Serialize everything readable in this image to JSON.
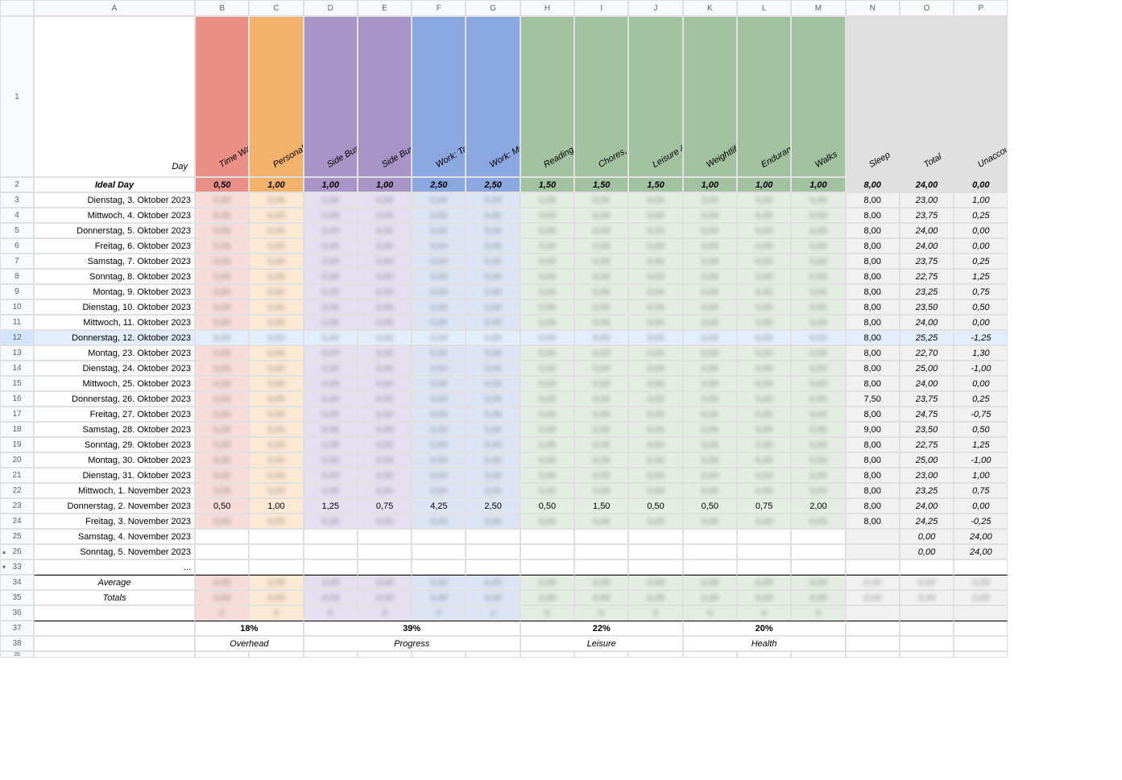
{
  "columns": [
    "A",
    "B",
    "C",
    "D",
    "E",
    "F",
    "G",
    "H",
    "I",
    "J",
    "K",
    "L",
    "M",
    "N",
    "O",
    "P"
  ],
  "headerLabels": {
    "A": "Day",
    "B": "Time Waste, Social Media & Procrastination",
    "C": "Personal Order",
    "D": "Side Business: Operations",
    "E": "Side Business: BizDev",
    "F": "Work: Tasks",
    "G": "Work: Meetings",
    "H": "Reading, Learning & Creating",
    "I": "Chores, Basics & Life",
    "J": "Leisure & Flow",
    "K": "Weightlifting",
    "L": "Endurance Training",
    "M": "Walks",
    "N": "Sleep",
    "O": "Total",
    "P": "Unaccounted"
  },
  "headerColors": {
    "B": "#e98f86",
    "C": "#f3b26b",
    "D": "#a994c8",
    "E": "#a994c8",
    "F": "#8aa7e0",
    "G": "#8aa7e0",
    "H": "#a2c1a1",
    "I": "#a2c1a1",
    "J": "#a2c1a1",
    "K": "#a2c1a1",
    "L": "#a2c1a1",
    "M": "#a2c1a1",
    "N": "#e0e0e0",
    "O": "#e0e0e0",
    "P": "#e0e0e0"
  },
  "bodyTints": {
    "B": "#f7dcd9",
    "C": "#fbe9d4",
    "D": "#e6dff0",
    "E": "#e6dff0",
    "F": "#dde5f5",
    "G": "#dde5f5",
    "H": "#e3ede2",
    "I": "#e3ede2",
    "J": "#e3ede2",
    "K": "#e3ede2",
    "L": "#e3ede2",
    "M": "#e3ede2",
    "N": "#f1f1f1",
    "O": "#f1f1f1",
    "P": "#f1f1f1"
  },
  "ideal": {
    "label": "Ideal Day",
    "B": "0,50",
    "C": "1,00",
    "D": "1,00",
    "E": "1,00",
    "F": "2,50",
    "G": "2,50",
    "H": "1,50",
    "I": "1,50",
    "J": "1,50",
    "K": "1,00",
    "L": "1,00",
    "M": "1,00",
    "N": "8,00",
    "O": "24,00",
    "P": "0,00"
  },
  "rows": [
    {
      "n": 3,
      "A": "Dienstag, 3. Oktober 2023",
      "N": "8,00",
      "O": "23,00",
      "P": "1,00"
    },
    {
      "n": 4,
      "A": "Mittwoch, 4. Oktober 2023",
      "N": "8,00",
      "O": "23,75",
      "P": "0,25"
    },
    {
      "n": 5,
      "A": "Donnerstag, 5. Oktober 2023",
      "N": "8,00",
      "O": "24,00",
      "P": "0,00"
    },
    {
      "n": 6,
      "A": "Freitag, 6. Oktober 2023",
      "N": "8,00",
      "O": "24,00",
      "P": "0,00"
    },
    {
      "n": 7,
      "A": "Samstag, 7. Oktober 2023",
      "N": "8,00",
      "O": "23,75",
      "P": "0,25"
    },
    {
      "n": 8,
      "A": "Sonntag, 8. Oktober 2023",
      "N": "8,00",
      "O": "22,75",
      "P": "1,25"
    },
    {
      "n": 9,
      "A": "Montag, 9. Oktober 2023",
      "N": "8,00",
      "O": "23,25",
      "P": "0,75"
    },
    {
      "n": 10,
      "A": "Dienstag, 10. Oktober 2023",
      "N": "8,00",
      "O": "23,50",
      "P": "0,50"
    },
    {
      "n": 11,
      "A": "Mittwoch, 11. Oktober 2023",
      "N": "8,00",
      "O": "24,00",
      "P": "0,00"
    },
    {
      "n": 12,
      "A": "Donnerstag, 12. Oktober 2023",
      "sel": true,
      "N": "8,00",
      "O": "25,25",
      "P": "-1,25"
    },
    {
      "n": 13,
      "A": "Montag, 23. Oktober 2023",
      "N": "8,00",
      "O": "22,70",
      "P": "1,30"
    },
    {
      "n": 14,
      "A": "Dienstag, 24. Oktober 2023",
      "N": "8,00",
      "O": "25,00",
      "P": "-1,00"
    },
    {
      "n": 15,
      "A": "Mittwoch, 25. Oktober 2023",
      "N": "8,00",
      "O": "24,00",
      "P": "0,00"
    },
    {
      "n": 16,
      "A": "Donnerstag, 26. Oktober 2023",
      "N": "7,50",
      "O": "23,75",
      "P": "0,25"
    },
    {
      "n": 17,
      "A": "Freitag, 27. Oktober 2023",
      "N": "8,00",
      "O": "24,75",
      "P": "-0,75"
    },
    {
      "n": 18,
      "A": "Samstag, 28. Oktober 2023",
      "N": "9,00",
      "O": "23,50",
      "P": "0,50"
    },
    {
      "n": 19,
      "A": "Sonntag, 29. Oktober 2023",
      "N": "8,00",
      "O": "22,75",
      "P": "1,25"
    },
    {
      "n": 20,
      "A": "Montag, 30. Oktober 2023",
      "N": "8,00",
      "O": "25,00",
      "P": "-1,00"
    },
    {
      "n": 21,
      "A": "Dienstag, 31. Oktober 2023",
      "N": "8,00",
      "O": "23,00",
      "P": "1,00"
    },
    {
      "n": 22,
      "A": "Mittwoch, 1. November 2023",
      "N": "8,00",
      "O": "23,25",
      "P": "0,75"
    },
    {
      "n": 23,
      "A": "Donnerstag, 2. November 2023",
      "clear": true,
      "B": "0,50",
      "C": "1,00",
      "D": "1,25",
      "E": "0,75",
      "F": "4,25",
      "G": "2,50",
      "H": "0,50",
      "I": "1,50",
      "J": "0,50",
      "K": "0,50",
      "L": "0,75",
      "M": "2,00",
      "N": "8,00",
      "O": "24,00",
      "P": "0,00"
    },
    {
      "n": 24,
      "A": "Freitag, 3. November 2023",
      "N": "8,00",
      "O": "24,25",
      "P": "-0,25"
    },
    {
      "n": 25,
      "A": "Samstag, 4. November 2023",
      "O": "0,00",
      "P": "24,00",
      "empty": true
    },
    {
      "n": 26,
      "A": "Sonntag, 5. November 2023",
      "tri": "up",
      "O": "0,00",
      "P": "24,00",
      "empty": true
    }
  ],
  "row33": {
    "n": 33,
    "A": "...",
    "tri": "dn"
  },
  "avg": {
    "n": 34,
    "A": "Average"
  },
  "totals": {
    "n": 35,
    "A": "Totals"
  },
  "pct": {
    "n": 37,
    "BC": "18%",
    "DEFG": "39%",
    "HIJ": "22%",
    "KLM": "20%"
  },
  "groups": {
    "n": 38,
    "BC": "Overhead",
    "DEFG": "Progress",
    "HIJ": "Leisure",
    "KLM": "Health"
  },
  "extraRows": [
    36,
    39
  ]
}
